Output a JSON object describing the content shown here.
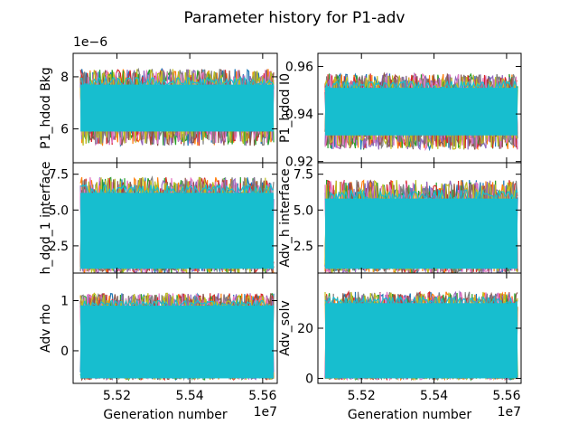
{
  "figure": {
    "title": "Parameter history for P1-adv"
  },
  "palette": [
    "#1f77b4",
    "#ff7f0e",
    "#2ca02c",
    "#d62728",
    "#9467bd",
    "#8c564b",
    "#e377c2",
    "#7f7f7f",
    "#bcbd22",
    "#17becf"
  ],
  "chart_data": [
    {
      "type": "line",
      "ylabel": "P1_hdod Bkg",
      "xlabel": "",
      "xlim": [
        55080000,
        55640000
      ],
      "ylim": [
        4.7e-06,
        8.9e-06
      ],
      "yticks": [
        6e-06,
        8e-06
      ],
      "ytick_labels": [
        "6",
        "8"
      ],
      "xticks": [
        55200000,
        55400000,
        55600000
      ],
      "xtick_labels": [],
      "y_offset_label": "1e−6",
      "x_offset_label": "",
      "band": {
        "low_mean": 5.8e-06,
        "low_spread": 4.5e-07,
        "high_mean": 7.9e-06,
        "high_spread": 4e-07,
        "fill_color": "#17becf",
        "fill_low": 5.9e-06,
        "fill_high": 7.7e-06
      }
    },
    {
      "type": "line",
      "ylabel": "P1_hdod I0",
      "xlabel": "",
      "xlim": [
        55080000,
        55640000
      ],
      "ylim": [
        0.9195,
        0.9655
      ],
      "yticks": [
        0.92,
        0.94,
        0.96
      ],
      "ytick_labels": [
        "0.92",
        "0.94",
        "0.96"
      ],
      "xticks": [
        55200000,
        55400000,
        55600000
      ],
      "xtick_labels": [],
      "y_offset_label": "",
      "x_offset_label": "",
      "band": {
        "low_mean": 0.929,
        "low_spread": 0.004,
        "high_mean": 0.953,
        "high_spread": 0.004,
        "fill_color": "#17becf",
        "fill_low": 0.931,
        "fill_high": 0.951
      }
    },
    {
      "type": "line",
      "ylabel": "h_dod_1 interface",
      "xlabel": "",
      "xlim": [
        55080000,
        55640000
      ],
      "ylim": [
        0.6,
        8.3
      ],
      "yticks": [
        2.5,
        5.0,
        7.5
      ],
      "ytick_labels": [
        "2.5",
        "5.0",
        "7.5"
      ],
      "xticks": [
        55200000,
        55400000,
        55600000
      ],
      "xtick_labels": [],
      "y_offset_label": "",
      "x_offset_label": "",
      "band": {
        "low_mean": 1.0,
        "low_spread": 0.4,
        "high_mean": 6.5,
        "high_spread": 0.8,
        "fill_color": "#17becf",
        "fill_low": 0.9,
        "fill_high": 6.2
      }
    },
    {
      "type": "line",
      "ylabel": "Adv_h interface",
      "xlabel": "",
      "xlim": [
        55080000,
        55640000
      ],
      "ylim": [
        0.6,
        8.3
      ],
      "yticks": [
        2.5,
        5.0,
        7.5
      ],
      "ytick_labels": [
        "2.5",
        "5.0",
        "7.5"
      ],
      "xticks": [
        55200000,
        55400000,
        55600000
      ],
      "xtick_labels": [],
      "y_offset_label": "",
      "x_offset_label": "",
      "band": {
        "low_mean": 1.0,
        "low_spread": 0.4,
        "high_mean": 6.2,
        "high_spread": 0.9,
        "fill_color": "#17becf",
        "fill_low": 0.9,
        "fill_high": 5.8
      }
    },
    {
      "type": "line",
      "ylabel": "Adv rho",
      "xlabel": "Generation number",
      "xlim": [
        55080000,
        55640000
      ],
      "ylim": [
        -0.65,
        1.55
      ],
      "yticks": [
        0,
        1
      ],
      "ytick_labels": [
        "0",
        "1"
      ],
      "xticks": [
        55200000,
        55400000,
        55600000
      ],
      "xtick_labels": [
        "5.52",
        "5.54",
        "5.56"
      ],
      "y_offset_label": "",
      "x_offset_label": "1e7",
      "band": {
        "low_mean": -0.5,
        "low_spread": 0.08,
        "high_mean": 1.0,
        "high_spread": 0.15,
        "fill_color": "#17becf",
        "fill_low": -0.55,
        "fill_high": 0.9
      }
    },
    {
      "type": "line",
      "ylabel": "Adv_solv",
      "xlabel": "Generation number",
      "xlim": [
        55080000,
        55640000
      ],
      "ylim": [
        -2,
        42
      ],
      "yticks": [
        0,
        20
      ],
      "ytick_labels": [
        "0",
        "20"
      ],
      "xticks": [
        55200000,
        55400000,
        55600000
      ],
      "xtick_labels": [
        "5.52",
        "5.54",
        "5.56"
      ],
      "y_offset_label": "",
      "x_offset_label": "1e7",
      "band": {
        "low_mean": 0.5,
        "low_spread": 1.0,
        "high_mean": 31,
        "high_spread": 3.5,
        "fill_color": "#17becf",
        "fill_low": 0,
        "fill_high": 30
      }
    }
  ]
}
